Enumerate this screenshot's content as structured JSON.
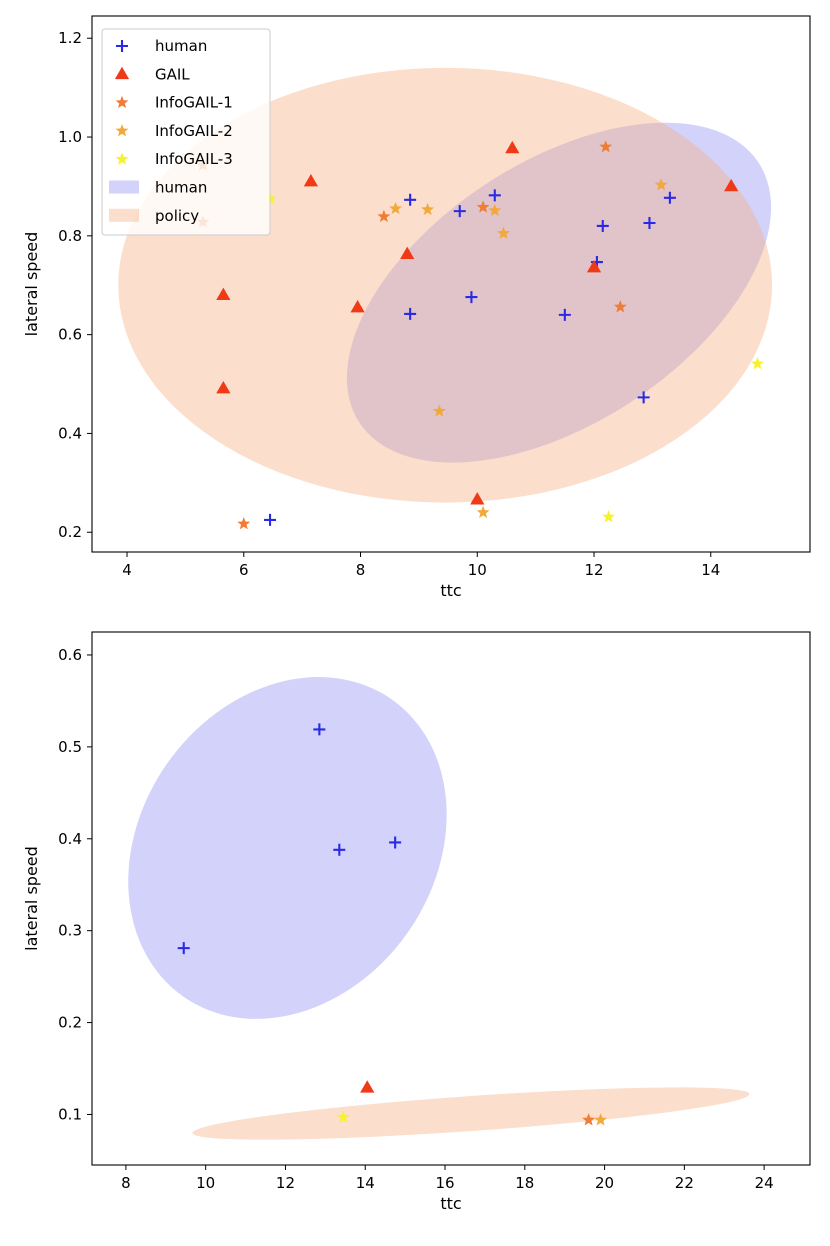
{
  "chart_data": [
    {
      "type": "scatter",
      "xlabel": "ttc",
      "ylabel": "lateral speed",
      "xlim": [
        3.4,
        15.7
      ],
      "ylim": [
        0.16,
        1.245
      ],
      "xticks": [
        4,
        6,
        8,
        10,
        12,
        14
      ],
      "xtick_labels": [
        "4",
        "6",
        "8",
        "10",
        "12",
        "14"
      ],
      "yticks": [
        0.2,
        0.4,
        0.6,
        0.8,
        1.0,
        1.2
      ],
      "ytick_labels": [
        "0.2",
        "0.4",
        "0.6",
        "0.8",
        "1.0",
        "1.2"
      ],
      "legend_placement": "upper-left",
      "grid": false,
      "series": [
        {
          "name": "human",
          "marker": "plus",
          "color": "#2a2ae6",
          "points": [
            [
              6.45,
              0.225
            ],
            [
              8.85,
              0.873
            ],
            [
              8.85,
              0.642
            ],
            [
              9.7,
              0.85
            ],
            [
              9.9,
              0.676
            ],
            [
              10.3,
              0.882
            ],
            [
              11.5,
              0.64
            ],
            [
              12.05,
              0.747
            ],
            [
              12.15,
              0.82
            ],
            [
              12.95,
              0.826
            ],
            [
              13.3,
              0.877
            ],
            [
              12.85,
              0.473
            ]
          ]
        },
        {
          "name": "GAIL",
          "marker": "triangle",
          "color": "#f03a17",
          "points": [
            [
              5.65,
              0.68
            ],
            [
              5.65,
              0.491
            ],
            [
              7.15,
              0.91
            ],
            [
              7.95,
              0.655
            ],
            [
              8.8,
              0.763
            ],
            [
              10.0,
              0.266
            ],
            [
              10.6,
              0.977
            ],
            [
              12.0,
              0.736
            ],
            [
              14.35,
              0.9
            ]
          ]
        },
        {
          "name": "InfoGAIL-1",
          "marker": "star",
          "color": "#f07c35",
          "points": [
            [
              5.3,
              0.943
            ],
            [
              5.3,
              0.828
            ],
            [
              6.0,
              0.217
            ],
            [
              8.4,
              0.839
            ],
            [
              10.1,
              0.858
            ],
            [
              12.2,
              0.98
            ],
            [
              12.45,
              0.656
            ]
          ]
        },
        {
          "name": "InfoGAIL-2",
          "marker": "star",
          "color": "#f2a93b",
          "points": [
            [
              8.6,
              0.855
            ],
            [
              9.15,
              0.853
            ],
            [
              9.35,
              0.445
            ],
            [
              10.3,
              0.851
            ],
            [
              10.45,
              0.805
            ],
            [
              10.1,
              0.24
            ],
            [
              13.15,
              0.903
            ]
          ]
        },
        {
          "name": "InfoGAIL-3",
          "marker": "star",
          "color": "#f7f22e",
          "points": [
            [
              6.45,
              0.875
            ],
            [
              12.25,
              0.231
            ],
            [
              14.8,
              0.541
            ]
          ]
        }
      ],
      "ellipses": [
        {
          "name": "human",
          "color": "#8f8ff5",
          "opacity": 0.4,
          "center": [
            11.4,
            0.685
          ],
          "rx": 4.08,
          "ry": 0.265,
          "angle": -33
        },
        {
          "name": "policy",
          "color": "#f6b184",
          "opacity": 0.42,
          "center": [
            9.45,
            0.7
          ],
          "rx": 5.6,
          "ry": 0.44,
          "angle": 0
        }
      ]
    },
    {
      "type": "scatter",
      "xlabel": "ttc",
      "ylabel": "lateral speed",
      "xlim": [
        7.15,
        25.15
      ],
      "ylim": [
        0.045,
        0.625
      ],
      "xticks": [
        8,
        10,
        12,
        14,
        16,
        18,
        20,
        22,
        24
      ],
      "xtick_labels": [
        "8",
        "10",
        "12",
        "14",
        "16",
        "18",
        "20",
        "22",
        "24"
      ],
      "yticks": [
        0.1,
        0.2,
        0.3,
        0.4,
        0.5,
        0.6
      ],
      "ytick_labels": [
        "0.1",
        "0.2",
        "0.3",
        "0.4",
        "0.5",
        "0.6"
      ],
      "grid": false,
      "series": [
        {
          "name": "human",
          "marker": "plus",
          "color": "#2a2ae6",
          "points": [
            [
              9.45,
              0.281
            ],
            [
              12.85,
              0.519
            ],
            [
              13.35,
              0.388
            ],
            [
              14.75,
              0.396
            ]
          ]
        },
        {
          "name": "GAIL",
          "marker": "triangle",
          "color": "#f03a17",
          "points": [
            [
              14.05,
              0.129
            ]
          ]
        },
        {
          "name": "InfoGAIL-1",
          "marker": "star",
          "color": "#f07c35",
          "points": [
            [
              19.6,
              0.094
            ]
          ]
        },
        {
          "name": "InfoGAIL-2",
          "marker": "star",
          "color": "#f2a93b",
          "points": [
            [
              19.9,
              0.094
            ]
          ]
        },
        {
          "name": "InfoGAIL-3",
          "marker": "star",
          "color": "#f7f22e",
          "points": [
            [
              13.45,
              0.097
            ]
          ]
        }
      ],
      "ellipses": [
        {
          "name": "human",
          "color": "#8f8ff5",
          "opacity": 0.4,
          "center": [
            12.05,
            0.39
          ],
          "rx": 4.55,
          "ry": 0.16,
          "angle": -55
        },
        {
          "name": "policy",
          "color": "#f6b184",
          "opacity": 0.42,
          "center": [
            16.65,
            0.101
          ],
          "rx": 7.0,
          "ry": 0.019,
          "angle": -4
        }
      ]
    }
  ]
}
